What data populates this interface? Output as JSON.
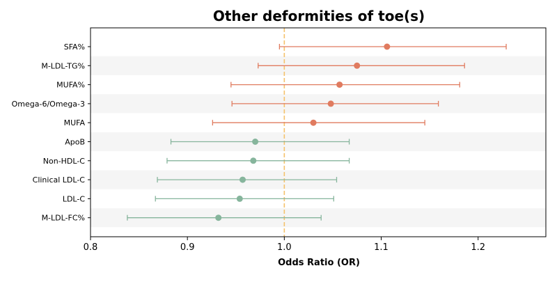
{
  "chart_data": {
    "type": "forest",
    "title": "Other deformities of toe(s)",
    "xlabel": "Odds Ratio (OR)",
    "xlim": [
      0.8,
      1.27
    ],
    "xticks": [
      "0.8",
      "0.9",
      "1.0",
      "1.1",
      "1.2"
    ],
    "reference_line": 1.0,
    "colors": {
      "positive": "#e07b5f",
      "negative": "#86b59c",
      "reference": "#f5c26b",
      "band": "#f5f5f5"
    },
    "rows": [
      {
        "label": "SFA%",
        "or": 1.106,
        "lo": 0.995,
        "hi": 1.229,
        "group": "positive"
      },
      {
        "label": "M-LDL-TG%",
        "or": 1.075,
        "lo": 0.973,
        "hi": 1.186,
        "group": "positive"
      },
      {
        "label": "MUFA%",
        "or": 1.057,
        "lo": 0.945,
        "hi": 1.181,
        "group": "positive"
      },
      {
        "label": "Omega-6/Omega-3",
        "or": 1.048,
        "lo": 0.946,
        "hi": 1.159,
        "group": "positive"
      },
      {
        "label": "MUFA",
        "or": 1.03,
        "lo": 0.926,
        "hi": 1.145,
        "group": "positive"
      },
      {
        "label": "ApoB",
        "or": 0.97,
        "lo": 0.883,
        "hi": 1.067,
        "group": "negative"
      },
      {
        "label": "Non-HDL-C",
        "or": 0.968,
        "lo": 0.879,
        "hi": 1.067,
        "group": "negative"
      },
      {
        "label": "Clinical LDL-C",
        "or": 0.957,
        "lo": 0.869,
        "hi": 1.054,
        "group": "negative"
      },
      {
        "label": "LDL-C",
        "or": 0.954,
        "lo": 0.867,
        "hi": 1.051,
        "group": "negative"
      },
      {
        "label": "M-LDL-FC%",
        "or": 0.932,
        "lo": 0.838,
        "hi": 1.038,
        "group": "negative"
      }
    ]
  }
}
